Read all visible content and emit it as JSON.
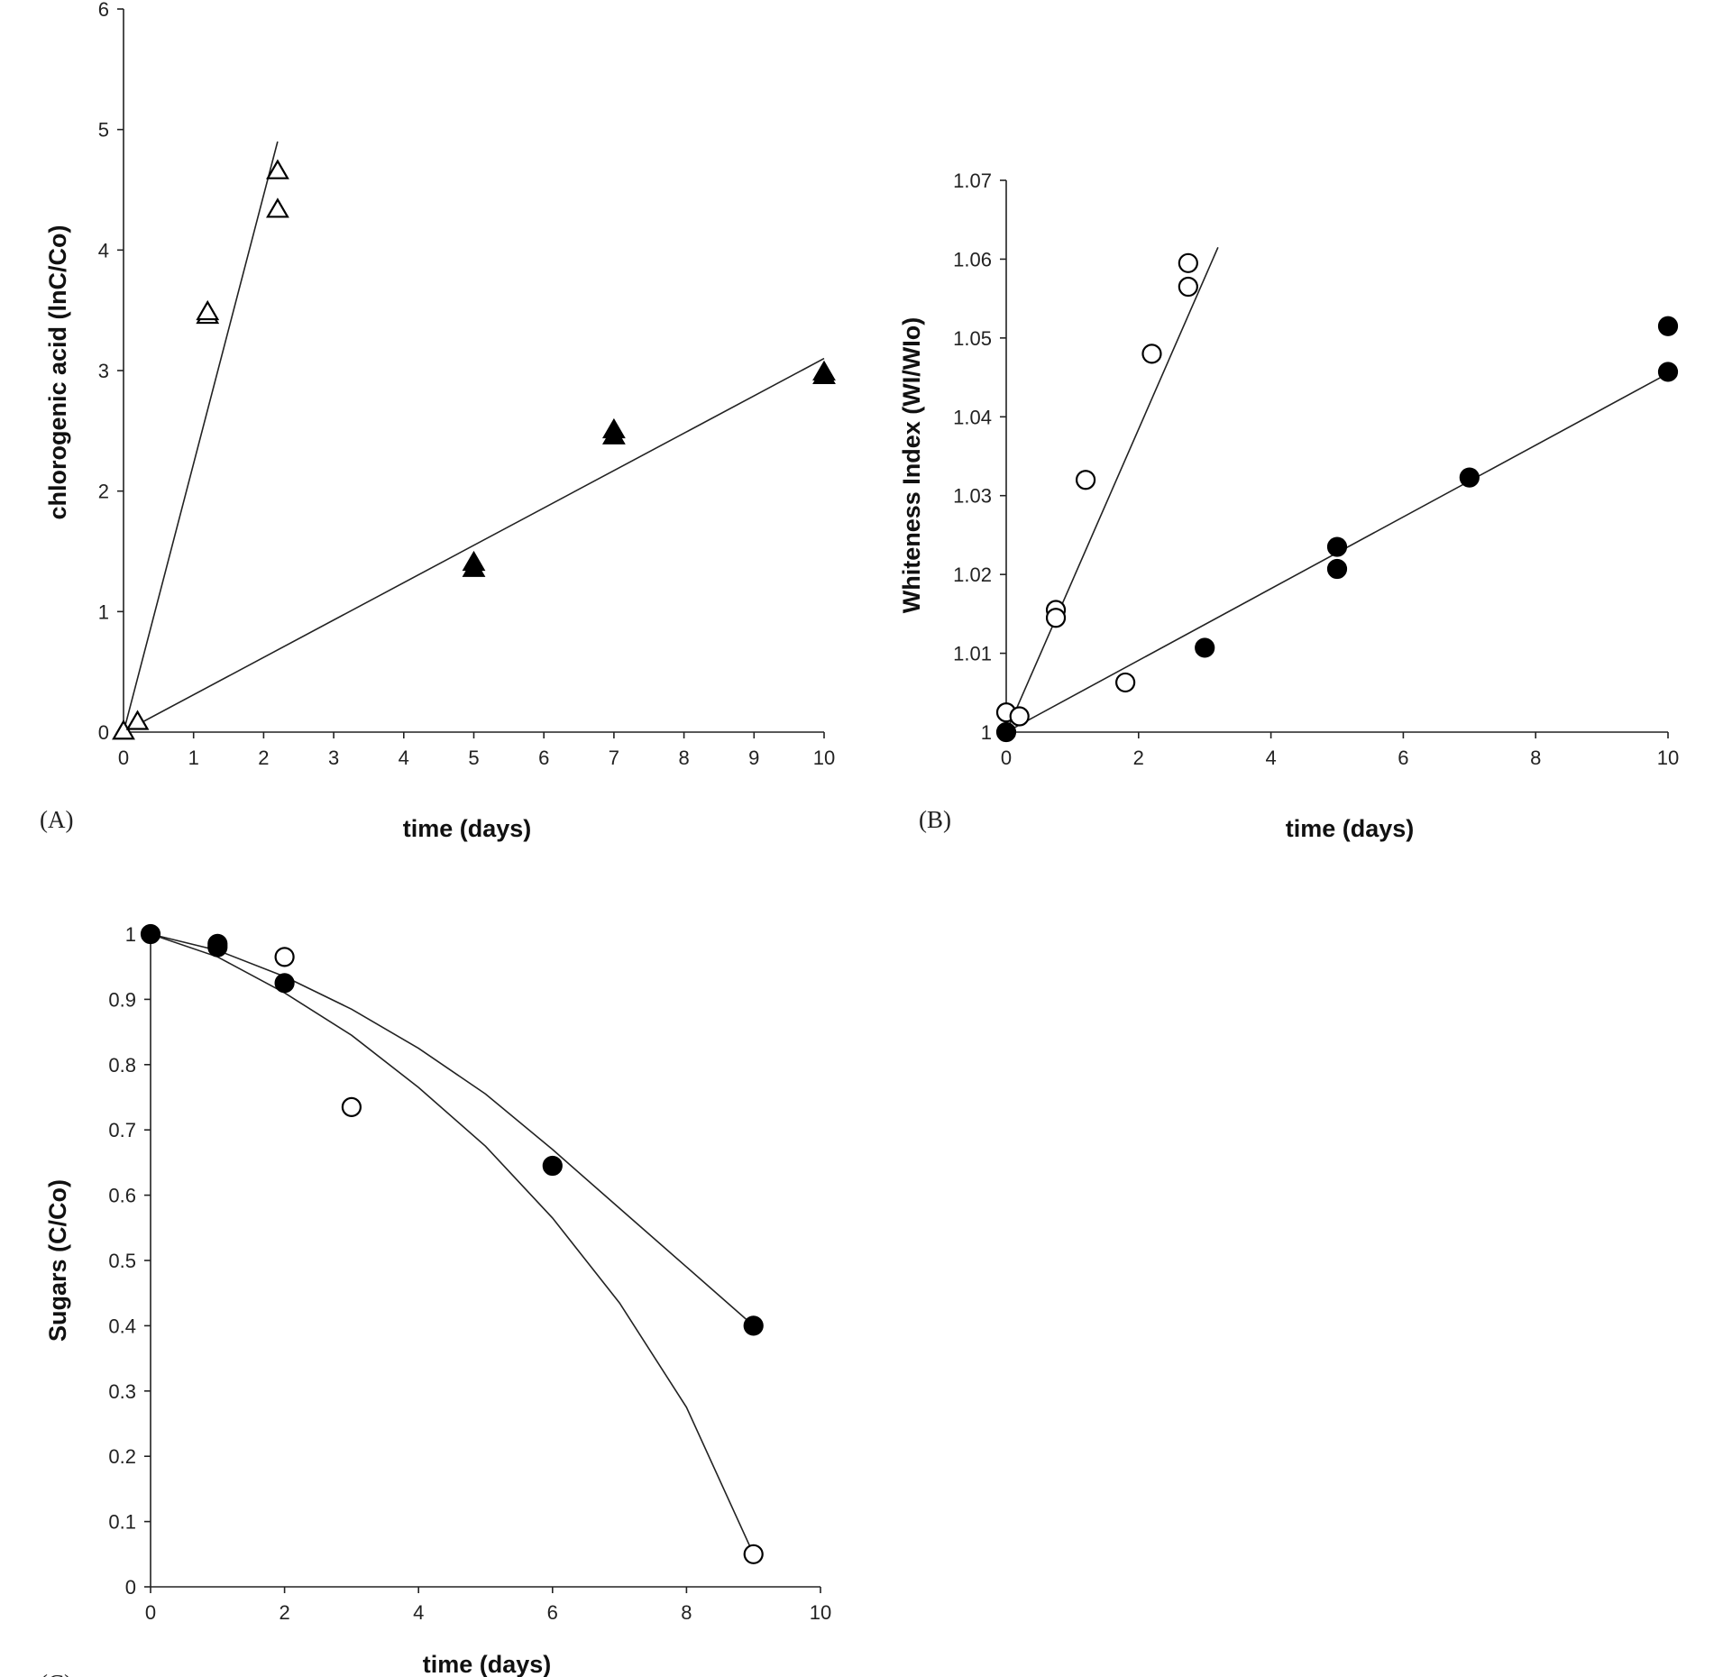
{
  "chart_data": [
    {
      "panel": "(A)",
      "type": "scatter",
      "xlabel": "time (days)",
      "ylabel": "chlorogenic acid (lnC/Co)",
      "xlim": [
        0,
        10
      ],
      "ylim": [
        0,
        6
      ],
      "xticks": [
        0,
        1,
        2,
        3,
        4,
        5,
        6,
        7,
        8,
        9,
        10
      ],
      "yticks": [
        0,
        1,
        2,
        3,
        4,
        5,
        6
      ],
      "grid": false,
      "series": [
        {
          "marker": "open-triangle",
          "points": [
            [
              0,
              0
            ],
            [
              0.2,
              0.08
            ],
            [
              1.2,
              3.45
            ],
            [
              1.2,
              3.48
            ],
            [
              2.2,
              4.33
            ],
            [
              2.2,
              4.65
            ]
          ],
          "fit": [
            [
              0,
              0
            ],
            [
              2.2,
              4.9
            ]
          ]
        },
        {
          "marker": "filled-triangle",
          "points": [
            [
              5,
              1.35
            ],
            [
              5,
              1.4
            ],
            [
              7,
              2.45
            ],
            [
              7,
              2.5
            ],
            [
              10,
              2.98
            ],
            [
              10,
              2.95
            ]
          ],
          "fit": [
            [
              0,
              0
            ],
            [
              10,
              3.1
            ]
          ]
        }
      ]
    },
    {
      "panel": "(B)",
      "type": "scatter",
      "xlabel": "time (days)",
      "ylabel": "Whiteness Index (WI/WIo)",
      "xlim": [
        0,
        10
      ],
      "ylim": [
        1,
        1.07
      ],
      "xticks": [
        0,
        2,
        4,
        6,
        8,
        10
      ],
      "yticks": [
        1,
        1.01,
        1.02,
        1.03,
        1.04,
        1.05,
        1.06,
        1.07
      ],
      "grid": false,
      "series": [
        {
          "marker": "open-circle",
          "points": [
            [
              0,
              1.0025
            ],
            [
              0.2,
              1.002
            ],
            [
              0.75,
              1.0155
            ],
            [
              0.75,
              1.0145
            ],
            [
              1.2,
              1.032
            ],
            [
              1.8,
              1.0063
            ],
            [
              2.2,
              1.048
            ],
            [
              2.75,
              1.0595
            ],
            [
              2.75,
              1.0565
            ]
          ],
          "fit": [
            [
              0,
              1.0
            ],
            [
              3.2,
              1.0615
            ]
          ]
        },
        {
          "marker": "filled-circle",
          "points": [
            [
              0,
              1.0
            ],
            [
              3.0,
              1.0107
            ],
            [
              5.0,
              1.0235
            ],
            [
              5.0,
              1.0207
            ],
            [
              7.0,
              1.0323
            ],
            [
              10.0,
              1.0515
            ],
            [
              10.0,
              1.0457
            ]
          ],
          "fit": [
            [
              0,
              1.0
            ],
            [
              10,
              1.0455
            ]
          ]
        }
      ]
    },
    {
      "panel": "(C)",
      "type": "scatter",
      "xlabel": "time (days)",
      "ylabel": "Sugars (C/Co)",
      "xlim": [
        0,
        10
      ],
      "ylim": [
        0,
        1
      ],
      "xticks": [
        0,
        2,
        4,
        6,
        8,
        10
      ],
      "yticks": [
        0,
        0.1,
        0.2,
        0.3,
        0.4,
        0.5,
        0.6,
        0.7,
        0.8,
        0.9,
        1
      ],
      "grid": false,
      "series": [
        {
          "marker": "open-circle",
          "points": [
            [
              2,
              0.965
            ],
            [
              3,
              0.735
            ],
            [
              9,
              0.05
            ]
          ],
          "fit": [
            [
              0,
              1.0
            ],
            [
              1,
              0.965
            ],
            [
              2,
              0.91
            ],
            [
              3,
              0.845
            ],
            [
              4,
              0.765
            ],
            [
              5,
              0.675
            ],
            [
              6,
              0.565
            ],
            [
              7,
              0.435
            ],
            [
              8,
              0.275
            ],
            [
              9,
              0.05
            ]
          ]
        },
        {
          "marker": "filled-circle",
          "points": [
            [
              0,
              1.0
            ],
            [
              1,
              0.985
            ],
            [
              1,
              0.98
            ],
            [
              2,
              0.925
            ],
            [
              6,
              0.645
            ],
            [
              9,
              0.4
            ]
          ],
          "fit": [
            [
              0,
              1.0
            ],
            [
              1,
              0.975
            ],
            [
              2,
              0.935
            ],
            [
              3,
              0.885
            ],
            [
              4,
              0.825
            ],
            [
              5,
              0.755
            ],
            [
              6,
              0.67
            ],
            [
              7,
              0.58
            ],
            [
              8,
              0.49
            ],
            [
              9,
              0.4
            ]
          ]
        }
      ]
    }
  ]
}
